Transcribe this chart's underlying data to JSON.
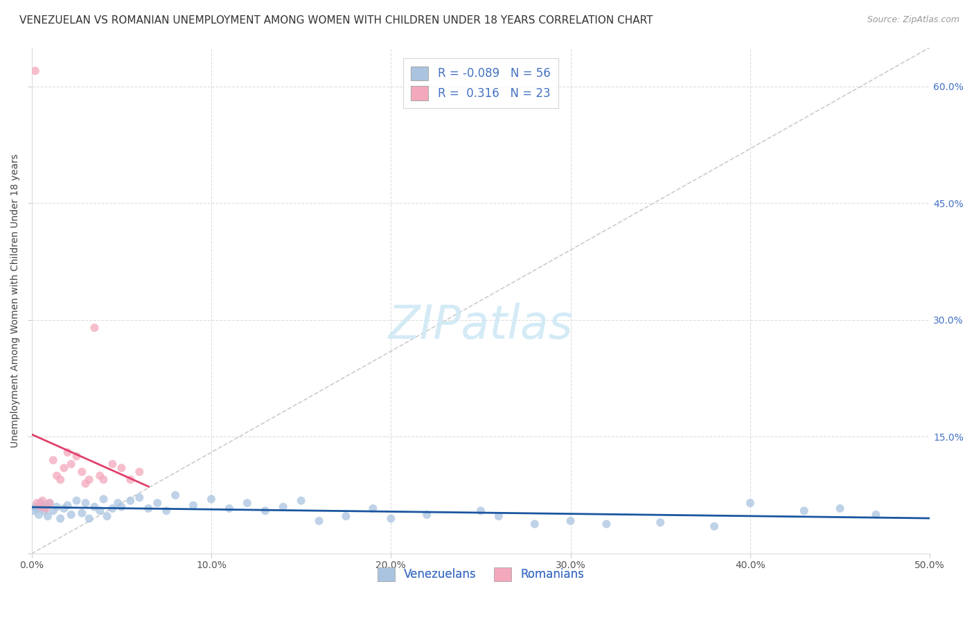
{
  "title": "VENEZUELAN VS ROMANIAN UNEMPLOYMENT AMONG WOMEN WITH CHILDREN UNDER 18 YEARS CORRELATION CHART",
  "source": "Source: ZipAtlas.com",
  "ylabel": "Unemployment Among Women with Children Under 18 years",
  "xlim": [
    0.0,
    0.5
  ],
  "ylim": [
    0.0,
    0.65
  ],
  "xticks": [
    0.0,
    0.1,
    0.2,
    0.3,
    0.4,
    0.5
  ],
  "xticklabels": [
    "0.0%",
    "10.0%",
    "20.0%",
    "30.0%",
    "40.0%",
    "50.0%"
  ],
  "yticks": [
    0.0,
    0.15,
    0.3,
    0.45,
    0.6
  ],
  "yticklabels_right": [
    "",
    "15.0%",
    "30.0%",
    "45.0%",
    "60.0%"
  ],
  "legend_x_label": "Venezuelans",
  "legend_p_label": "Romanians",
  "r_venezuelan": "-0.089",
  "n_venezuelan": "56",
  "r_romanian": "0.316",
  "n_romanian": "23",
  "venezuelan_color": "#aac4e0",
  "romanian_color": "#f4a8bc",
  "venezuelan_line_color": "#1a56a0",
  "romanian_line_color": "#e0406a",
  "diagonal_color": "#cccccc",
  "background_color": "#ffffff",
  "watermark": "ZIPatlas",
  "venezuelan_x": [
    0.001,
    0.002,
    0.003,
    0.004,
    0.005,
    0.006,
    0.007,
    0.008,
    0.009,
    0.01,
    0.012,
    0.014,
    0.016,
    0.018,
    0.02,
    0.022,
    0.025,
    0.028,
    0.03,
    0.032,
    0.035,
    0.038,
    0.04,
    0.042,
    0.045,
    0.048,
    0.05,
    0.055,
    0.06,
    0.065,
    0.07,
    0.075,
    0.08,
    0.09,
    0.1,
    0.11,
    0.12,
    0.13,
    0.14,
    0.15,
    0.16,
    0.175,
    0.19,
    0.2,
    0.22,
    0.25,
    0.26,
    0.28,
    0.3,
    0.32,
    0.35,
    0.38,
    0.4,
    0.43,
    0.45,
    0.47
  ],
  "venezuelan_y": [
    0.055,
    0.06,
    0.058,
    0.05,
    0.065,
    0.06,
    0.055,
    0.062,
    0.048,
    0.065,
    0.055,
    0.06,
    0.045,
    0.058,
    0.062,
    0.05,
    0.068,
    0.052,
    0.065,
    0.045,
    0.06,
    0.055,
    0.07,
    0.048,
    0.058,
    0.065,
    0.06,
    0.068,
    0.072,
    0.058,
    0.065,
    0.055,
    0.075,
    0.062,
    0.07,
    0.058,
    0.065,
    0.055,
    0.06,
    0.068,
    0.042,
    0.048,
    0.058,
    0.045,
    0.05,
    0.055,
    0.048,
    0.038,
    0.042,
    0.038,
    0.04,
    0.035,
    0.065,
    0.055,
    0.058,
    0.05
  ],
  "romanian_x": [
    0.002,
    0.003,
    0.005,
    0.006,
    0.008,
    0.01,
    0.012,
    0.014,
    0.016,
    0.018,
    0.02,
    0.022,
    0.025,
    0.028,
    0.03,
    0.032,
    0.035,
    0.038,
    0.04,
    0.045,
    0.05,
    0.055,
    0.06
  ],
  "romanian_y": [
    0.62,
    0.065,
    0.06,
    0.068,
    0.058,
    0.065,
    0.12,
    0.1,
    0.095,
    0.11,
    0.13,
    0.115,
    0.125,
    0.105,
    0.09,
    0.095,
    0.29,
    0.1,
    0.095,
    0.115,
    0.11,
    0.095,
    0.105
  ],
  "title_fontsize": 11,
  "axis_label_fontsize": 10,
  "tick_fontsize": 10,
  "legend_fontsize": 12,
  "watermark_fontsize": 48,
  "source_fontsize": 9
}
